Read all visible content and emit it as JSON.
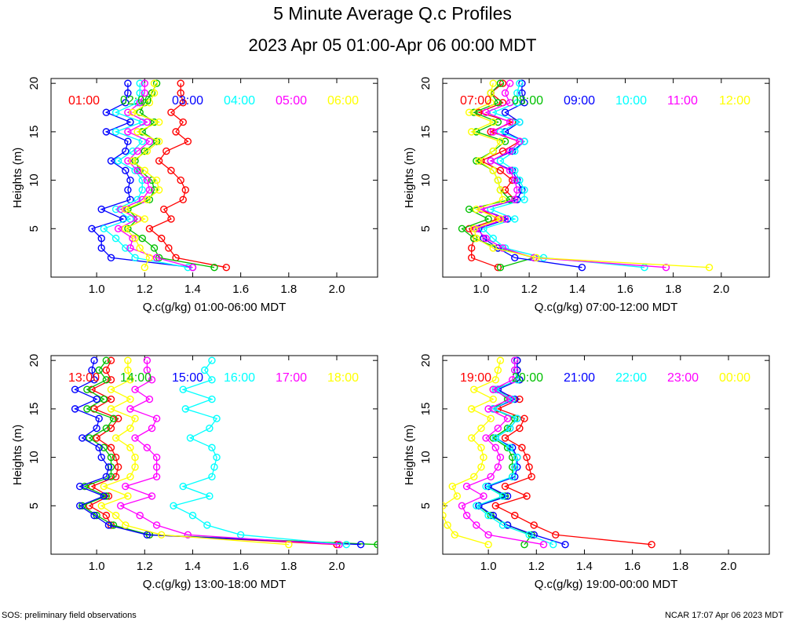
{
  "page": {
    "title": "5 Minute Average Q.c Profiles",
    "subtitle": "2023 Apr 05 01:00-Apr 06 00:00 MDT",
    "footer_left": "SOS: preliminary field observations",
    "footer_right": "NCAR 17:07 Apr 06 2023 MDT"
  },
  "chart_data": [
    {
      "type": "line",
      "title": "",
      "xlabel": "Q.c(g/kg) 01:00-06:00 MDT",
      "ylabel": "Heights (m)",
      "xlim": [
        0.81,
        2.17
      ],
      "ylim": [
        0,
        20.5
      ],
      "xticks": [
        "1.0",
        "1.2",
        "1.4",
        "1.6",
        "1.8",
        "2.0"
      ],
      "yticks": [
        "5",
        "10",
        "15",
        "20"
      ],
      "heights": [
        1,
        2,
        3,
        4,
        5,
        6,
        7,
        8,
        9,
        10,
        11,
        12,
        13,
        14,
        15,
        16,
        17,
        18,
        19,
        20
      ],
      "series": [
        {
          "name": "01:00",
          "color": "#ff0000",
          "values": [
            1.54,
            1.33,
            1.3,
            1.27,
            1.22,
            1.31,
            1.28,
            1.36,
            1.37,
            1.35,
            1.31,
            1.26,
            1.29,
            1.38,
            1.33,
            1.36,
            1.31,
            1.36,
            1.35,
            1.35
          ]
        },
        {
          "name": "02:00",
          "color": "#00c000",
          "values": [
            1.49,
            1.26,
            1.24,
            1.19,
            1.13,
            1.17,
            1.13,
            1.22,
            1.24,
            1.23,
            1.18,
            1.16,
            1.2,
            1.25,
            1.19,
            1.24,
            1.18,
            1.2,
            1.23,
            1.25
          ]
        },
        {
          "name": "03:00",
          "color": "#0000ff",
          "values": [
            1.4,
            1.06,
            1.02,
            1.02,
            0.98,
            1.11,
            1.02,
            1.14,
            1.13,
            1.14,
            1.12,
            1.06,
            1.12,
            1.13,
            1.04,
            1.14,
            1.04,
            1.12,
            1.13,
            1.13
          ]
        },
        {
          "name": "04:00",
          "color": "#00ffff",
          "values": [
            1.38,
            1.16,
            1.12,
            1.08,
            1.03,
            1.14,
            1.08,
            1.17,
            1.19,
            1.19,
            1.16,
            1.09,
            1.15,
            1.19,
            1.08,
            1.19,
            1.08,
            1.17,
            1.18,
            1.18
          ]
        },
        {
          "name": "05:00",
          "color": "#ff00ff",
          "values": [
            1.4,
            1.25,
            1.14,
            1.15,
            1.09,
            1.17,
            1.1,
            1.19,
            1.22,
            1.21,
            1.17,
            1.13,
            1.17,
            1.22,
            1.13,
            1.21,
            1.13,
            1.18,
            1.2,
            1.2
          ]
        },
        {
          "name": "06:00",
          "color": "#ffff00",
          "values": [
            1.2,
            1.22,
            1.18,
            1.16,
            1.12,
            1.2,
            1.12,
            1.21,
            1.26,
            1.25,
            1.2,
            1.15,
            1.21,
            1.26,
            1.17,
            1.26,
            1.15,
            1.22,
            1.24,
            1.24
          ]
        }
      ]
    },
    {
      "type": "line",
      "title": "",
      "xlabel": "Q.c(g/kg) 07:00-12:00 MDT",
      "ylabel": "Heights (m)",
      "xlim": [
        0.84,
        2.2
      ],
      "ylim": [
        0,
        20.5
      ],
      "xticks": [
        "1.0",
        "1.2",
        "1.4",
        "1.6",
        "1.8",
        "2.0"
      ],
      "yticks": [
        "5",
        "10",
        "15",
        "20"
      ],
      "heights": [
        1,
        2,
        3,
        4,
        5,
        6,
        7,
        8,
        9,
        10,
        11,
        12,
        13,
        14,
        15,
        16,
        17,
        18,
        19,
        20
      ],
      "series": [
        {
          "name": "07:00",
          "color": "#ff0000",
          "values": [
            1.07,
            0.96,
            0.96,
            0.97,
            0.95,
            1.07,
            1.0,
            1.14,
            1.1,
            1.13,
            1.08,
            1.0,
            1.09,
            1.16,
            1.04,
            1.13,
            0.99,
            1.09,
            1.04,
            1.09
          ]
        },
        {
          "name": "08:00",
          "color": "#00c000",
          "values": [
            1.08,
            1.22,
            1.07,
            0.97,
            0.92,
            1.03,
            0.95,
            1.12,
            1.08,
            1.07,
            1.05,
            0.98,
            1.05,
            1.1,
            0.98,
            1.07,
            0.97,
            1.07,
            1.04,
            1.08
          ]
        },
        {
          "name": "09:00",
          "color": "#0000ff",
          "values": [
            1.42,
            1.14,
            1.07,
            1.01,
            0.99,
            1.11,
            1.0,
            1.15,
            1.17,
            1.15,
            1.13,
            1.04,
            1.13,
            1.18,
            1.1,
            1.16,
            1.1,
            1.18,
            1.17,
            1.17
          ]
        },
        {
          "name": "10:00",
          "color": "#00ffff",
          "values": [
            1.68,
            1.26,
            1.1,
            1.05,
            1.01,
            1.14,
            1.04,
            1.18,
            1.18,
            1.16,
            1.14,
            1.08,
            1.14,
            1.18,
            1.08,
            1.16,
            1.05,
            1.15,
            1.15,
            1.16
          ]
        },
        {
          "name": "11:00",
          "color": "#ff00ff",
          "values": [
            1.77,
            1.22,
            1.09,
            1.02,
            0.98,
            1.1,
            1.0,
            1.14,
            1.15,
            1.14,
            1.12,
            1.04,
            1.12,
            1.16,
            1.05,
            1.12,
            1.02,
            1.12,
            1.1,
            1.12
          ]
        },
        {
          "name": "12:00",
          "color": "#ffff00",
          "values": [
            1.95,
            1.23,
            1.05,
            0.98,
            0.97,
            1.08,
            0.98,
            1.09,
            1.08,
            1.07,
            1.05,
            0.99,
            1.05,
            1.08,
            0.96,
            1.05,
            0.95,
            1.04,
            1.04,
            1.05
          ]
        }
      ]
    },
    {
      "type": "line",
      "title": "",
      "xlabel": "Q.c(g/kg) 13:00-18:00 MDT",
      "ylabel": "Heights (m)",
      "xlim": [
        0.81,
        2.17
      ],
      "ylim": [
        0,
        20.5
      ],
      "xticks": [
        "1.0",
        "1.2",
        "1.4",
        "1.6",
        "1.8",
        "2.0"
      ],
      "yticks": [
        "5",
        "10",
        "15",
        "20"
      ],
      "heights": [
        1,
        2,
        3,
        4,
        5,
        6,
        7,
        8,
        9,
        10,
        11,
        12,
        13,
        14,
        15,
        16,
        17,
        18,
        19,
        20
      ],
      "series": [
        {
          "name": "13:00",
          "color": "#ff0000",
          "values": [
            2.0,
            1.22,
            1.06,
            1.04,
            0.97,
            1.05,
            0.98,
            1.08,
            1.09,
            1.08,
            1.06,
            1.0,
            1.06,
            1.09,
            0.99,
            1.06,
            0.98,
            1.06,
            1.04,
            1.06
          ]
        },
        {
          "name": "14:00",
          "color": "#00c000",
          "values": [
            2.17,
            1.22,
            1.07,
            1.0,
            0.94,
            1.04,
            0.95,
            1.06,
            1.06,
            1.06,
            1.03,
            0.97,
            1.04,
            1.07,
            0.96,
            1.03,
            0.96,
            1.04,
            1.01,
            1.04
          ]
        },
        {
          "name": "15:00",
          "color": "#0000ff",
          "values": [
            2.1,
            1.21,
            1.05,
            0.99,
            0.93,
            1.03,
            0.93,
            1.04,
            1.05,
            1.02,
            1.01,
            0.94,
            1.0,
            1.01,
            0.91,
            1.0,
            0.91,
            0.99,
            0.98,
            0.99
          ]
        },
        {
          "name": "16:00",
          "color": "#00ffff",
          "values": [
            2.04,
            1.6,
            1.46,
            1.4,
            1.32,
            1.47,
            1.36,
            1.48,
            1.49,
            1.5,
            1.48,
            1.39,
            1.47,
            1.5,
            1.37,
            1.48,
            1.36,
            1.48,
            1.45,
            1.48
          ]
        },
        {
          "name": "17:00",
          "color": "#ff00ff",
          "values": [
            2.01,
            1.38,
            1.25,
            1.18,
            1.1,
            1.23,
            1.12,
            1.25,
            1.25,
            1.25,
            1.21,
            1.16,
            1.23,
            1.25,
            1.14,
            1.22,
            1.16,
            1.23,
            1.21,
            1.21
          ]
        },
        {
          "name": "18:00",
          "color": "#ffff00",
          "values": [
            1.8,
            1.27,
            1.12,
            1.08,
            1.02,
            1.13,
            1.03,
            1.14,
            1.16,
            1.16,
            1.14,
            1.08,
            1.14,
            1.16,
            1.06,
            1.14,
            1.06,
            1.14,
            1.13,
            1.13
          ]
        }
      ]
    },
    {
      "type": "line",
      "title": "",
      "xlabel": "Q.c(g/kg) 19:00-00:00 MDT",
      "ylabel": "Heights (m)",
      "xlim": [
        0.81,
        2.17
      ],
      "ylim": [
        0,
        20.5
      ],
      "xticks": [
        "1.0",
        "1.2",
        "1.4",
        "1.6",
        "1.8",
        "2.0"
      ],
      "yticks": [
        "5",
        "10",
        "15",
        "20"
      ],
      "heights": [
        1,
        2,
        3,
        4,
        5,
        6,
        7,
        8,
        9,
        10,
        11,
        12,
        13,
        14,
        15,
        16,
        17,
        18,
        19,
        20
      ],
      "series": [
        {
          "name": "19:00",
          "color": "#ff0000",
          "values": [
            1.68,
            1.28,
            1.19,
            1.11,
            1.03,
            1.16,
            1.07,
            1.18,
            1.17,
            1.16,
            1.14,
            1.07,
            1.13,
            1.15,
            1.04,
            1.13,
            1.02,
            1.13,
            1.12,
            1.12
          ]
        },
        {
          "name": "20:00",
          "color": "#00c000",
          "values": [
            1.15,
            1.18,
            1.08,
            1.01,
            0.96,
            1.07,
            1.0,
            1.1,
            1.1,
            1.1,
            1.08,
            1.02,
            1.08,
            1.11,
            1.02,
            1.08,
            1.03,
            1.13,
            1.12,
            1.12
          ]
        },
        {
          "name": "21:00",
          "color": "#0000ff",
          "values": [
            1.32,
            1.19,
            1.08,
            1.02,
            0.96,
            1.08,
            1.0,
            1.11,
            1.12,
            1.12,
            1.1,
            1.03,
            1.09,
            1.12,
            1.02,
            1.11,
            1.04,
            1.13,
            1.12,
            1.12
          ]
        },
        {
          "name": "22:00",
          "color": "#00ffff",
          "values": [
            1.27,
            1.17,
            1.06,
            1.0,
            0.95,
            1.06,
            0.99,
            1.1,
            1.11,
            1.12,
            1.09,
            1.03,
            1.09,
            1.12,
            1.02,
            1.1,
            1.03,
            1.12,
            1.11,
            1.11
          ]
        },
        {
          "name": "23:00",
          "color": "#ff00ff",
          "values": [
            1.23,
            1.0,
            0.95,
            0.91,
            0.89,
            0.98,
            0.91,
            1.01,
            1.04,
            1.05,
            1.03,
            0.99,
            1.04,
            1.08,
            1.0,
            1.09,
            1.02,
            1.1,
            1.11,
            1.11
          ]
        },
        {
          "name": "00:00",
          "color": "#ffff00",
          "values": [
            1.0,
            0.86,
            0.83,
            0.81,
            0.81,
            0.87,
            0.85,
            0.94,
            0.97,
            0.98,
            0.97,
            0.93,
            0.97,
            1.01,
            0.93,
            1.02,
            0.94,
            1.03,
            1.04,
            1.05
          ]
        }
      ]
    }
  ]
}
